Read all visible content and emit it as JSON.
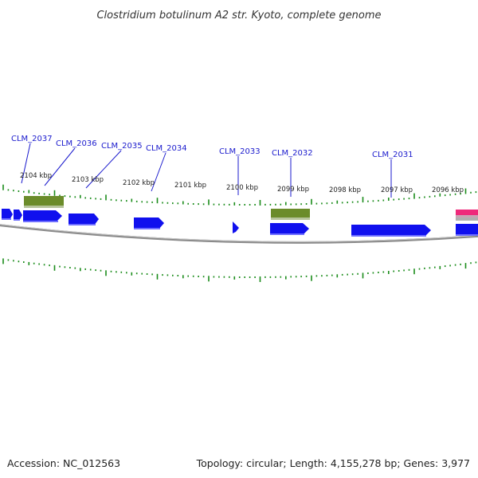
{
  "map": {
    "title": "Clostridium botulinum A2 str. Kyoto, complete genome",
    "accession": "Accession: NC_012563",
    "summary": "Topology: circular; Length: 4,155,278 bp; Genes: 3,977",
    "topology": "circular",
    "view": "linear zoomed segment of circular map",
    "colors": {
      "cds": "#1010ee",
      "gene_block": "#6b8c2a",
      "rna": "#ee2a7b",
      "tick": "#1a8c1a",
      "backbone": "#8a8a8a",
      "label_line": "#1a1acd"
    }
  },
  "scale": {
    "unit": "kbp",
    "labels": [
      "2104 kbp",
      "2103 kbp",
      "2102 kbp",
      "2101 kbp",
      "2100 kbp",
      "2099 kbp",
      "2098 kbp",
      "2097 kbp",
      "2096 kbp"
    ]
  },
  "genes": [
    {
      "name": "CLM_2037"
    },
    {
      "name": "CLM_2036"
    },
    {
      "name": "CLM_2035"
    },
    {
      "name": "CLM_2034"
    },
    {
      "name": "CLM_2033"
    },
    {
      "name": "CLM_2032"
    },
    {
      "name": "CLM_2031"
    }
  ]
}
